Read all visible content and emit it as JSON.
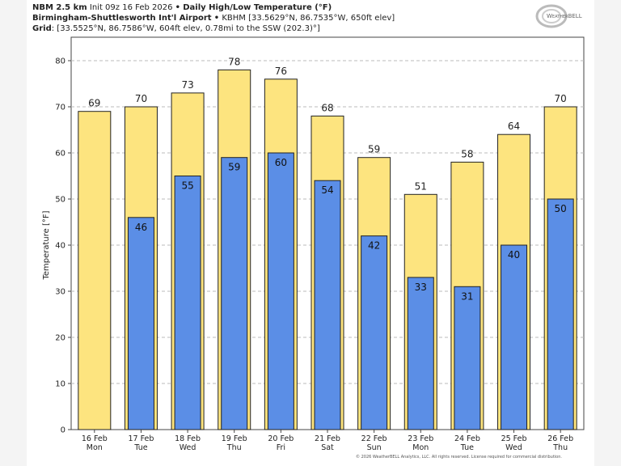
{
  "header": {
    "model": "NBM 2.5 km",
    "init": "Init 09z 16 Feb 2026",
    "product": "Daily High/Low Temperature (°F)",
    "station_name": "Birmingham-Shuttlesworth Int'l Airport",
    "station_info": "KBHM [33.5629°N, 86.7535°W, 650ft elev]",
    "grid_label": "Grid",
    "grid_info": "[33.5525°N, 86.7586°W, 604ft elev, 0.78mi to the SSW (202.3)°]",
    "bullet": "•"
  },
  "logo_text": "WeatherBELL",
  "footer": "© 2026 WeatherBELL Analytics, LLC. All rights reserved. License required for commercial distribution.",
  "chart_data": {
    "type": "bar",
    "title": "Daily High/Low Temperature (°F)",
    "ylabel": "Temperature [°F]",
    "ylim": [
      0,
      80
    ],
    "yticks": [
      0,
      10,
      20,
      30,
      40,
      50,
      60,
      70,
      80
    ],
    "grid": true,
    "categories": [
      "16 Feb",
      "17 Feb",
      "18 Feb",
      "19 Feb",
      "20 Feb",
      "21 Feb",
      "22 Feb",
      "23 Feb",
      "24 Feb",
      "25 Feb",
      "26 Feb"
    ],
    "weekdays": [
      "Mon",
      "Tue",
      "Wed",
      "Thu",
      "Fri",
      "Sat",
      "Sun",
      "Mon",
      "Tue",
      "Wed",
      "Thu"
    ],
    "series": [
      {
        "key": "high",
        "values": [
          69,
          70,
          73,
          78,
          76,
          68,
          59,
          51,
          58,
          64,
          70
        ],
        "color": "#fde47f"
      },
      {
        "key": "low",
        "values": [
          null,
          46,
          55,
          59,
          60,
          54,
          42,
          33,
          31,
          40,
          50
        ],
        "color": "#5b8ee6"
      }
    ]
  }
}
